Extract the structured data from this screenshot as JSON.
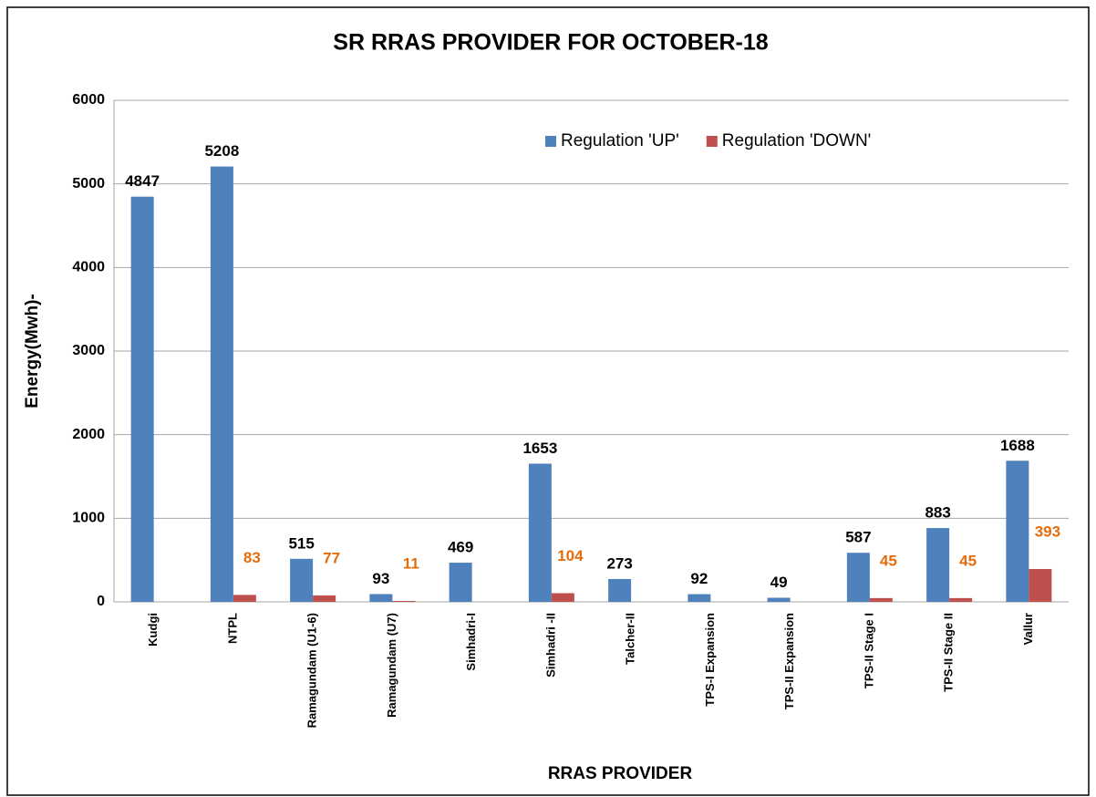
{
  "chart_data": {
    "type": "bar",
    "title": "SR RRAS PROVIDER FOR OCTOBER-18",
    "x_label": "RRAS PROVIDER",
    "y_label": "Energy(Mwh)-",
    "categories": [
      "Kudgi",
      "NTPL",
      "Ramagundam (U1-6)",
      "Ramagundam (U7)",
      "Simhadri-I",
      "Simhadri -II",
      "Talcher-II",
      "TPS-I Expansion",
      "TPS-II Expansion",
      "TPS-II Stage I",
      "TPS-II Stage II",
      "Vallur"
    ],
    "series": [
      {
        "name": "Regulation 'UP'",
        "color": "#4f81bd",
        "label_color": "#000000",
        "values": [
          4847,
          5208,
          515,
          93,
          469,
          1653,
          273,
          92,
          49,
          587,
          883,
          1688
        ]
      },
      {
        "name": "Regulation 'DOWN'",
        "color": "#c0504d",
        "label_color": "#e46c0a",
        "values": [
          null,
          83,
          77,
          11,
          null,
          104,
          null,
          null,
          null,
          45,
          45,
          393
        ]
      }
    ],
    "ylim": [
      0,
      6000
    ],
    "yticks": [
      0,
      1000,
      2000,
      3000,
      4000,
      5000,
      6000
    ],
    "grid": true,
    "legend": "top-right"
  }
}
